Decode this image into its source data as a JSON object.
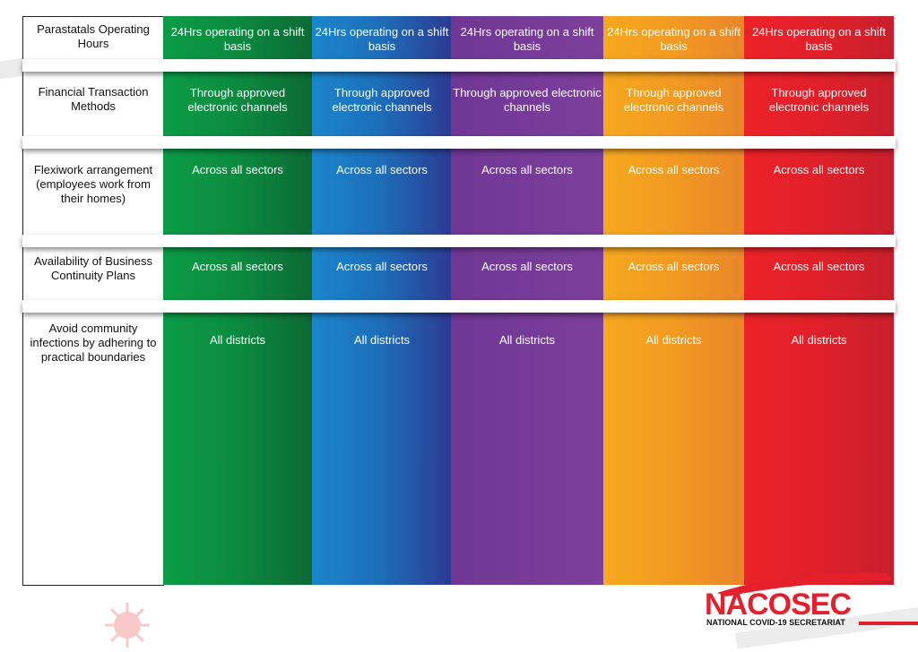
{
  "table": {
    "rows": [
      {
        "label": "Parastatals Operating Hours",
        "cells": [
          "24Hrs operating on a shift basis",
          "24Hrs operating on a shift basis",
          "24Hrs operating on a shift basis",
          "24Hrs operating on a shift basis",
          "24Hrs operating on a shift basis"
        ]
      },
      {
        "label": "Financial Transaction Methods",
        "cells": [
          "Through approved electronic channels",
          "Through approved electronic channels",
          "Through approved electronic channels",
          "Through approved electronic channels",
          "Through approved electronic channels"
        ]
      },
      {
        "label": "Flexiwork arrangement (employees work from their homes)",
        "cells": [
          "Across all sectors",
          "Across all sectors",
          "Across all sectors",
          "Across all sectors",
          "Across all sectors"
        ]
      },
      {
        "label": "Availability of Business Continuity Plans",
        "cells": [
          "Across all sectors",
          "Across all sectors",
          "Across all sectors",
          "Across all sectors",
          "Across all sectors"
        ]
      },
      {
        "label": "Avoid community infections by adhering to practical boundaries",
        "cells": [
          "All districts",
          "All districts",
          "All districts",
          "All districts",
          "All districts"
        ]
      }
    ]
  },
  "logo": {
    "name": "NACOSEC",
    "subtitle": "NATIONAL COVID-19 SECRETARIAT"
  }
}
